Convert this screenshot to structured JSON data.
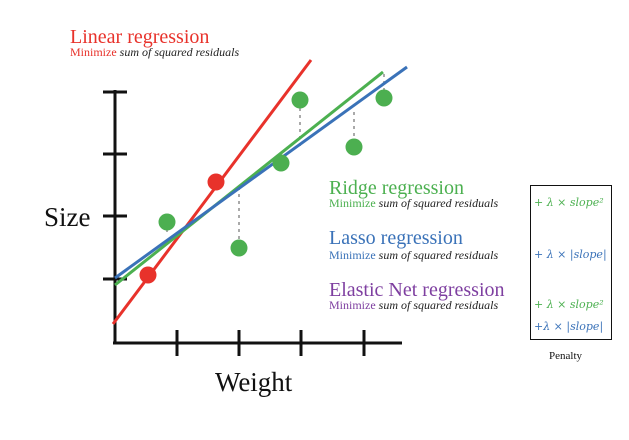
{
  "colors": {
    "linear": "#e8322b",
    "ridge": "#4cb050",
    "lasso": "#3a72b8",
    "elastic": "#7e3fa0",
    "points": "#4caf50",
    "axis": "#111111",
    "residual": "#a8a8a8"
  },
  "linear": {
    "title": "Linear regression",
    "sub_prefix": "Minimize",
    "sub_rest": "sum of squared residuals"
  },
  "ridge": {
    "title": "Ridge regression",
    "sub_prefix": "Minimize",
    "sub_rest": "sum of squared residuals",
    "penalty": "+ λ × slope²"
  },
  "lasso": {
    "title": "Lasso regression",
    "sub_prefix": "Minimize",
    "sub_rest": "sum of squared residuals",
    "penalty": "+ λ × |slope|"
  },
  "elastic": {
    "title": "Elastic Net regression",
    "sub_prefix": "Minimize",
    "sub_rest": "sum of squared residuals",
    "penalty1": "+ λ × slope²",
    "penalty2": "+λ × |slope|"
  },
  "penalty_label": "Penalty",
  "axes": {
    "x_label": "Weight",
    "y_label": "Size"
  }
}
